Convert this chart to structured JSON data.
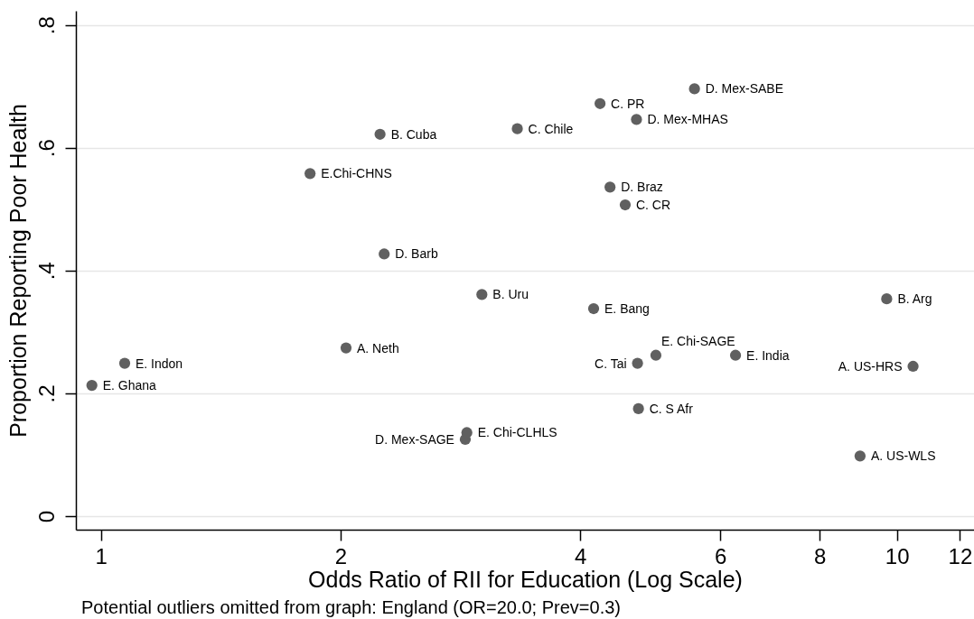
{
  "chart_data": {
    "type": "scatter",
    "xlabel": "Odds Ratio of RII for Education (Log Scale)",
    "ylabel": "Proportion Reporting Poor Health",
    "annotations": [
      "Potential outliers omitted from graph: England (OR=20.0; Prev=0.3)"
    ],
    "x": [
      0.974,
      1.071,
      1.831,
      2.032,
      2.242,
      2.269,
      2.869,
      2.882,
      3.01,
      3.335,
      4.159,
      4.237,
      4.361,
      4.557,
      4.708,
      4.722,
      4.735,
      4.98,
      5.568,
      6.27,
      8.99,
      9.71,
      10.48
    ],
    "values": [
      0.213,
      0.249,
      0.558,
      0.274,
      0.622,
      0.427,
      0.125,
      0.136,
      0.361,
      0.631,
      0.338,
      0.672,
      0.536,
      0.507,
      0.646,
      0.249,
      0.175,
      0.262,
      0.696,
      0.262,
      0.098,
      0.354,
      0.244
    ],
    "value_labels": [
      "E. Ghana",
      "E. Indon",
      "E.Chi-CHNS",
      "A. Neth",
      "B. Cuba",
      "D. Barb",
      "D. Mex-SAGE",
      "E. Chi-CLHLS",
      "B. Uru",
      "C. Chile",
      "E. Bang",
      "C. PR",
      "D. Braz",
      "C. CR",
      "D. Mex-MHAS",
      "C. Tai",
      "C. S Afr",
      "E. Chi-SAGE",
      "D. Mex-SABE",
      "E. India",
      "A. US-WLS",
      "B. Arg",
      "A. US-HRS"
    ],
    "color": "#606060",
    "marker": "circle",
    "log": "x",
    "grid": "y",
    "xlim": [
      0.93,
      12.5
    ],
    "ylim": [
      -0.022,
      0.823
    ],
    "xticks": [
      1,
      2,
      4,
      6,
      8,
      10,
      12
    ],
    "yticks": [
      0,
      {
        "value": 0.2,
        "label": ".2"
      },
      {
        "value": 0.4,
        "label": ".4"
      },
      {
        "value": 0.6,
        "label": ".6"
      },
      {
        "value": 0.8,
        "label": ".8"
      }
    ]
  }
}
